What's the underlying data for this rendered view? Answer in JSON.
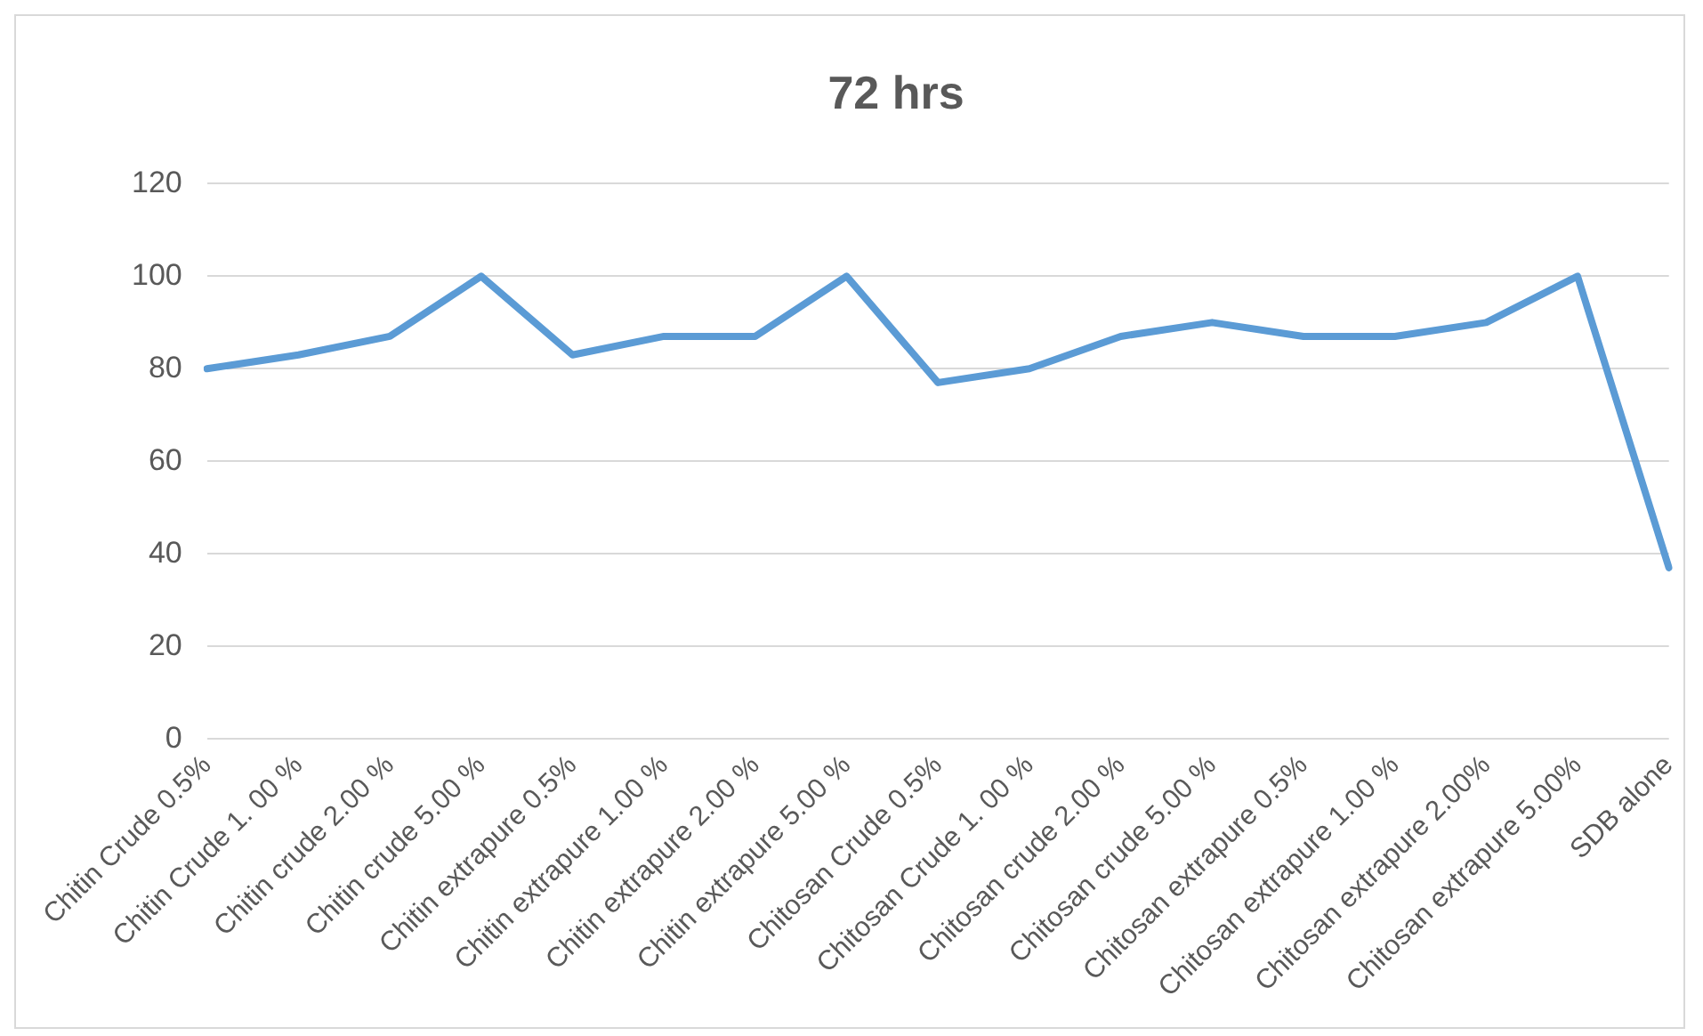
{
  "chart_data": {
    "type": "line",
    "title": "72 hrs",
    "categories": [
      "Chitin Crude 0.5%",
      "Chitin Crude 1. 00 %",
      "Chitin crude 2.00 %",
      "Chitin crude 5.00 %",
      "Chitin extrapure 0.5%",
      "Chitin extrapure 1.00 %",
      "Chitin extrapure 2.00 %",
      "Chitin extrapure 5.00 %",
      "Chitosan Crude 0.5%",
      "Chitosan Crude 1. 00 %",
      "Chitosan crude 2.00 %",
      "Chitosan crude 5.00 %",
      "Chitosan extrapure 0.5%",
      "Chitosan extrapure 1.00 %",
      "Chitosan extrapure 2.00%",
      "Chitosan extrapure 5.00%",
      "SDB alone"
    ],
    "series": [
      {
        "color": "#5b9bd5",
        "values": [
          80,
          83,
          87,
          100,
          83,
          87,
          87,
          100,
          77,
          80,
          87,
          90,
          87,
          87,
          90,
          100,
          37
        ]
      }
    ],
    "ylim": [
      0,
      120
    ],
    "yticks": [
      0,
      20,
      40,
      60,
      80,
      100,
      120
    ],
    "grid": "y",
    "legend": false,
    "marker": "none",
    "line_style": "solid"
  }
}
